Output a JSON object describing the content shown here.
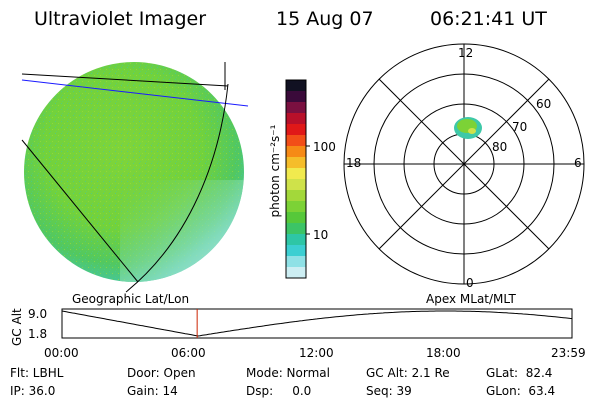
{
  "header": {
    "instrument": "Ultraviolet Imager",
    "date": "15 Aug 07",
    "time": "06:21:41 UT"
  },
  "colorbar": {
    "unit_label": "photon cm⁻²s⁻¹",
    "ticks": [
      "100",
      "10"
    ],
    "colors": [
      "#111122",
      "#3a0a3a",
      "#7a1040",
      "#b8102a",
      "#e01818",
      "#f24e18",
      "#f68a16",
      "#f5bd2a",
      "#f1ea4e",
      "#cfe24a",
      "#a3d83a",
      "#7cd236",
      "#56c83a",
      "#3cc466",
      "#2ec6a6",
      "#3ccfd2",
      "#8fe1e6",
      "#cdeef3"
    ]
  },
  "polar": {
    "mlt_labels": {
      "top": "12",
      "left": "18",
      "right": "6",
      "bottom": "0"
    },
    "lat_labels": [
      "60",
      "70",
      "80"
    ]
  },
  "track": {
    "left_label": "Geographic Lat/Lon",
    "right_label": "Apex MLat/MLT",
    "axis_label": "GC Alt",
    "y_ticks": [
      "9.0",
      "1.8"
    ],
    "x_ticks": [
      "00:00",
      "06:00",
      "12:00",
      "18:00",
      "23:59"
    ],
    "current_hour": 6.36
  },
  "status": {
    "flt": "Flt: LBHL",
    "ip": "IP: 36.0",
    "door": "Door: Open",
    "gain": "Gain: 14",
    "mode": "Mode: Normal",
    "dsp": "Dsp:     0.0",
    "gcalt": "GC Alt: 2.1 Re",
    "seq": "Seq: 39",
    "glat": "GLat:  82.4",
    "glon": "GLon:  63.4"
  },
  "colors": {
    "disk_main": "#76d33a",
    "disk_edge": "#3ec8a8",
    "disk_pale": "#bfeaea",
    "grid_blue": "#1a1aff",
    "marker_red": "#cc2200"
  }
}
